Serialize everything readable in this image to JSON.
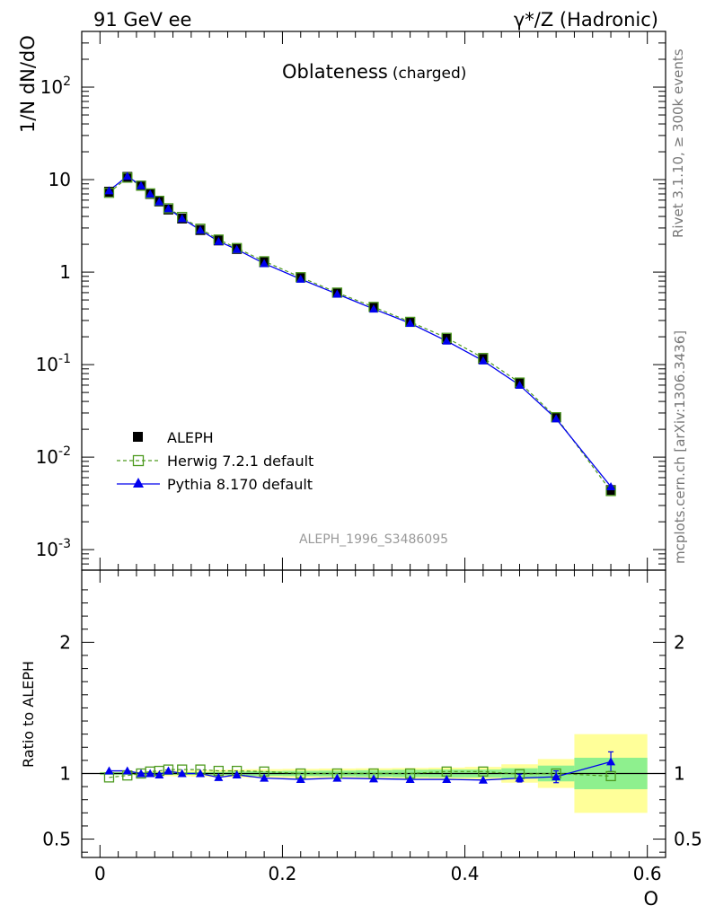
{
  "header": {
    "left_label": "91 GeV ee",
    "right_label": "γ*/Z (Hadronic)"
  },
  "side_text": {
    "rivet": "Rivet 3.1.10, ≥ 300k events",
    "mcplots": "mcplots.cern.ch [arXiv:1306.3436]"
  },
  "chart_data": [
    {
      "type": "scatter",
      "panel": "main",
      "title": "Oblateness",
      "title_suffix": "(charged)",
      "ylabel": "1/N dN/dO",
      "xlabel": "",
      "yscale": "log",
      "xlim": [
        -0.02,
        0.62
      ],
      "ylim": [
        0.0006,
        400
      ],
      "y_ticks": [
        {
          "value": 0.001,
          "base": "10",
          "exp": "-3"
        },
        {
          "value": 0.01,
          "base": "10",
          "exp": "-2"
        },
        {
          "value": 0.1,
          "base": "10",
          "exp": "-1"
        },
        {
          "value": 1,
          "base": "1",
          "exp": ""
        },
        {
          "value": 10,
          "base": "10",
          "exp": ""
        },
        {
          "value": 100,
          "base": "10",
          "exp": "2"
        }
      ],
      "analysis_label": "ALEPH_1996_S3486095",
      "x": [
        0.01,
        0.03,
        0.045,
        0.055,
        0.065,
        0.075,
        0.09,
        0.11,
        0.13,
        0.15,
        0.18,
        0.22,
        0.26,
        0.3,
        0.34,
        0.38,
        0.42,
        0.46,
        0.5,
        0.56
      ],
      "series": [
        {
          "name": "ALEPH",
          "style": "data",
          "color": "#000000",
          "values": [
            7.4,
            10.7,
            8.6,
            7.0,
            5.8,
            4.75,
            3.8,
            2.85,
            2.2,
            1.78,
            1.28,
            0.88,
            0.6,
            0.42,
            0.29,
            0.19,
            0.115,
            0.063,
            0.027,
            0.0044
          ]
        },
        {
          "name": "Herwig 7.2.1 default",
          "style": "dashed-open-square",
          "color": "#4d9a1f",
          "values": [
            7.2,
            10.5,
            8.6,
            7.1,
            5.9,
            4.9,
            3.95,
            2.95,
            2.25,
            1.82,
            1.31,
            0.88,
            0.6,
            0.42,
            0.29,
            0.195,
            0.118,
            0.064,
            0.027,
            0.0043
          ]
        },
        {
          "name": "Pythia 8.170 default",
          "style": "solid-triangle",
          "color": "#0000ee",
          "values": [
            7.6,
            10.9,
            8.6,
            7.0,
            5.75,
            4.85,
            3.8,
            2.85,
            2.15,
            1.76,
            1.24,
            0.84,
            0.58,
            0.4,
            0.28,
            0.18,
            0.11,
            0.06,
            0.026,
            0.0048
          ]
        }
      ],
      "legend_position": "bottom-left"
    },
    {
      "type": "scatter",
      "panel": "ratio",
      "ylabel": "Ratio to ALEPH",
      "xlabel": "O",
      "xlim": [
        -0.02,
        0.62
      ],
      "ylim": [
        0.36,
        2.55
      ],
      "y_ticks": [
        {
          "value": 0.5,
          "label": "0.5"
        },
        {
          "value": 1,
          "label": "1"
        },
        {
          "value": 2,
          "label": "2"
        }
      ],
      "x_ticks": [
        {
          "value": 0,
          "label": "0"
        },
        {
          "value": 0.2,
          "label": "0.2"
        },
        {
          "value": 0.4,
          "label": "0.4"
        },
        {
          "value": 0.6,
          "label": "0.6"
        }
      ],
      "reference_line": 1,
      "band_edges": [
        0.0,
        0.02,
        0.04,
        0.05,
        0.06,
        0.07,
        0.08,
        0.1,
        0.12,
        0.14,
        0.16,
        0.2,
        0.24,
        0.28,
        0.32,
        0.36,
        0.4,
        0.44,
        0.48,
        0.52,
        0.6
      ],
      "bands": {
        "inner_halfwidth": [
          0.01,
          0.01,
          0.01,
          0.01,
          0.01,
          0.01,
          0.01,
          0.01,
          0.012,
          0.015,
          0.018,
          0.02,
          0.022,
          0.025,
          0.028,
          0.03,
          0.03,
          0.04,
          0.06,
          0.12
        ],
        "outer_halfwidth": [
          0.012,
          0.012,
          0.014,
          0.016,
          0.018,
          0.02,
          0.022,
          0.025,
          0.028,
          0.03,
          0.033,
          0.035,
          0.038,
          0.04,
          0.042,
          0.045,
          0.05,
          0.07,
          0.11,
          0.3
        ],
        "inner_color": "#8ef08e",
        "outer_color": "#ffff99"
      },
      "x": [
        0.01,
        0.03,
        0.045,
        0.055,
        0.065,
        0.075,
        0.09,
        0.11,
        0.13,
        0.15,
        0.18,
        0.22,
        0.26,
        0.3,
        0.34,
        0.38,
        0.42,
        0.46,
        0.5,
        0.56
      ],
      "series": [
        {
          "name": "Herwig 7.2.1 default",
          "style": "dashed-open-square",
          "color": "#4d9a1f",
          "values": [
            0.97,
            0.985,
            1.0,
            1.015,
            1.02,
            1.03,
            1.03,
            1.03,
            1.02,
            1.02,
            1.015,
            1.0,
            1.0,
            1.0,
            1.0,
            1.015,
            1.015,
            0.995,
            1.0,
            0.98
          ]
        },
        {
          "name": "Pythia 8.170 default",
          "style": "solid-triangle",
          "color": "#0000ee",
          "values": [
            1.02,
            1.02,
            1.0,
            1.0,
            0.99,
            1.02,
            1.0,
            1.0,
            0.97,
            0.99,
            0.965,
            0.955,
            0.965,
            0.96,
            0.955,
            0.955,
            0.95,
            0.965,
            0.975,
            1.09
          ],
          "errors": [
            0,
            0,
            0,
            0,
            0,
            0,
            0,
            0,
            0,
            0,
            0,
            0,
            0,
            0,
            0,
            0,
            0,
            0.03,
            0.045,
            0.075
          ]
        }
      ]
    }
  ]
}
